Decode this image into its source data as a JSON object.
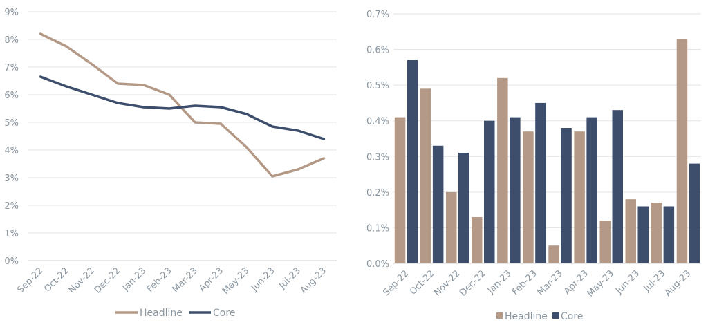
{
  "colors": {
    "headline": "#b49a86",
    "core": "#3c4e6c"
  },
  "chart_data": [
    {
      "type": "line",
      "categories": [
        "Sep-22",
        "Oct-22",
        "Nov-22",
        "Dec-22",
        "Jan-23",
        "Feb-23",
        "Mar-23",
        "Apr-23",
        "May-23",
        "Jun-23",
        "Jul-23",
        "Aug-23"
      ],
      "y_ticks": [
        "0%",
        "1%",
        "2%",
        "3%",
        "4%",
        "5%",
        "6%",
        "7%",
        "8%",
        "9%"
      ],
      "ylim": [
        0,
        9
      ],
      "grid": true,
      "legend_position": "bottom",
      "series": [
        {
          "name": "Headline",
          "values": [
            8.2,
            7.75,
            7.1,
            6.4,
            6.35,
            6.0,
            5.0,
            4.95,
            4.1,
            3.05,
            3.3,
            3.7
          ]
        },
        {
          "name": "Core",
          "values": [
            6.65,
            6.3,
            6.0,
            5.7,
            5.55,
            5.5,
            5.6,
            5.55,
            5.3,
            4.85,
            4.7,
            4.4
          ]
        }
      ]
    },
    {
      "type": "bar",
      "categories": [
        "Sep-22",
        "Oct-22",
        "Nov-22",
        "Dec-22",
        "Jan-23",
        "Feb-23",
        "Mar-23",
        "Apr-23",
        "May-23",
        "Jun-23",
        "Jul-23",
        "Aug-23"
      ],
      "y_ticks": [
        "0.0%",
        "0.1%",
        "0.2%",
        "0.3%",
        "0.4%",
        "0.5%",
        "0.6%",
        "0.7%"
      ],
      "ylim": [
        0,
        0.7
      ],
      "grid": true,
      "legend_position": "bottom",
      "series": [
        {
          "name": "Headline",
          "values": [
            0.41,
            0.49,
            0.2,
            0.13,
            0.52,
            0.37,
            0.05,
            0.37,
            0.12,
            0.18,
            0.17,
            0.63
          ]
        },
        {
          "name": "Core",
          "values": [
            0.57,
            0.33,
            0.31,
            0.4,
            0.41,
            0.45,
            0.38,
            0.41,
            0.43,
            0.16,
            0.16,
            0.28
          ]
        }
      ]
    }
  ]
}
